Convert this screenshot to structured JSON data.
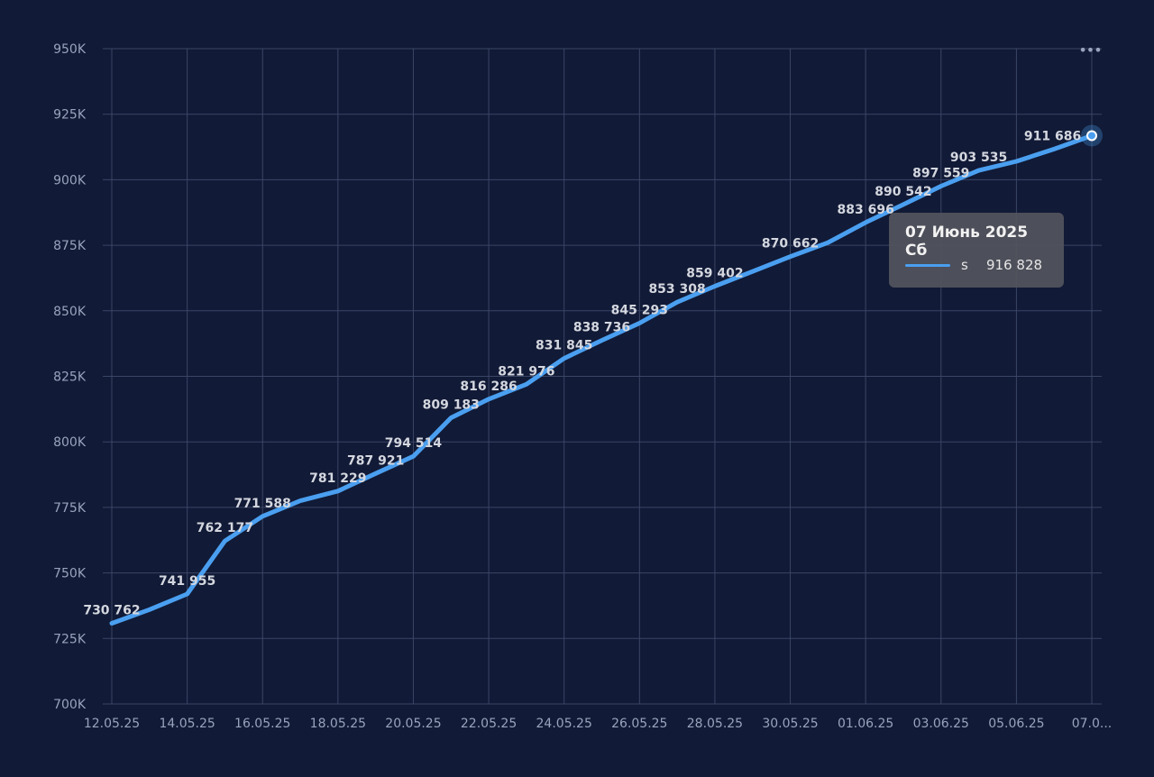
{
  "colors": {
    "background": "#111a36",
    "series": "#4a9ff0",
    "grid": "#3b4566",
    "tick_text": "#9aa3bd",
    "label_text": "#d4d7df"
  },
  "menu": {
    "icon": "more-dots-icon",
    "label": "•••"
  },
  "tooltip": {
    "title": "07 Июнь 2025 Сб",
    "series_name": "s",
    "value": "916 828"
  },
  "chart_data": {
    "type": "line",
    "x_tick_labels": [
      "12.05.25",
      "14.05.25",
      "16.05.25",
      "18.05.25",
      "20.05.25",
      "22.05.25",
      "24.05.25",
      "26.05.25",
      "28.05.25",
      "30.05.25",
      "01.06.25",
      "03.06.25",
      "05.06.25",
      "07.0..."
    ],
    "y_tick_labels": [
      "700K",
      "725K",
      "750K",
      "775K",
      "800K",
      "825K",
      "850K",
      "875K",
      "900K",
      "925K",
      "950K"
    ],
    "ylim": [
      700000,
      950000
    ],
    "grid": true,
    "series": [
      {
        "name": "s",
        "dates": [
          "2025-05-12",
          "2025-05-13",
          "2025-05-14",
          "2025-05-15",
          "2025-05-16",
          "2025-05-17",
          "2025-05-18",
          "2025-05-19",
          "2025-05-20",
          "2025-05-21",
          "2025-05-22",
          "2025-05-23",
          "2025-05-24",
          "2025-05-25",
          "2025-05-26",
          "2025-05-27",
          "2025-05-28",
          "2025-05-29",
          "2025-05-30",
          "2025-05-31",
          "2025-06-01",
          "2025-06-02",
          "2025-06-03",
          "2025-06-04",
          "2025-06-05",
          "2025-06-06",
          "2025-06-07"
        ],
        "values": [
          730762,
          736000,
          741955,
          762177,
          771588,
          777500,
          781229,
          787921,
          794514,
          809183,
          816286,
          821976,
          831845,
          838736,
          845293,
          853308,
          859402,
          865000,
          870662,
          876000,
          883696,
          890542,
          897559,
          903535,
          907000,
          911686,
          916828
        ],
        "labels": [
          "730 762",
          "",
          "741 955",
          "762 177",
          "771 588",
          "",
          "781 229",
          "787 921",
          "794 514",
          "809 183",
          "816 286",
          "821 976",
          "831 845",
          "838 736",
          "845 293",
          "853 308",
          "859 402",
          "",
          "870 662",
          "",
          "883 696",
          "890 542",
          "897 559",
          "903 535",
          "",
          "911 686",
          ""
        ]
      }
    ]
  }
}
